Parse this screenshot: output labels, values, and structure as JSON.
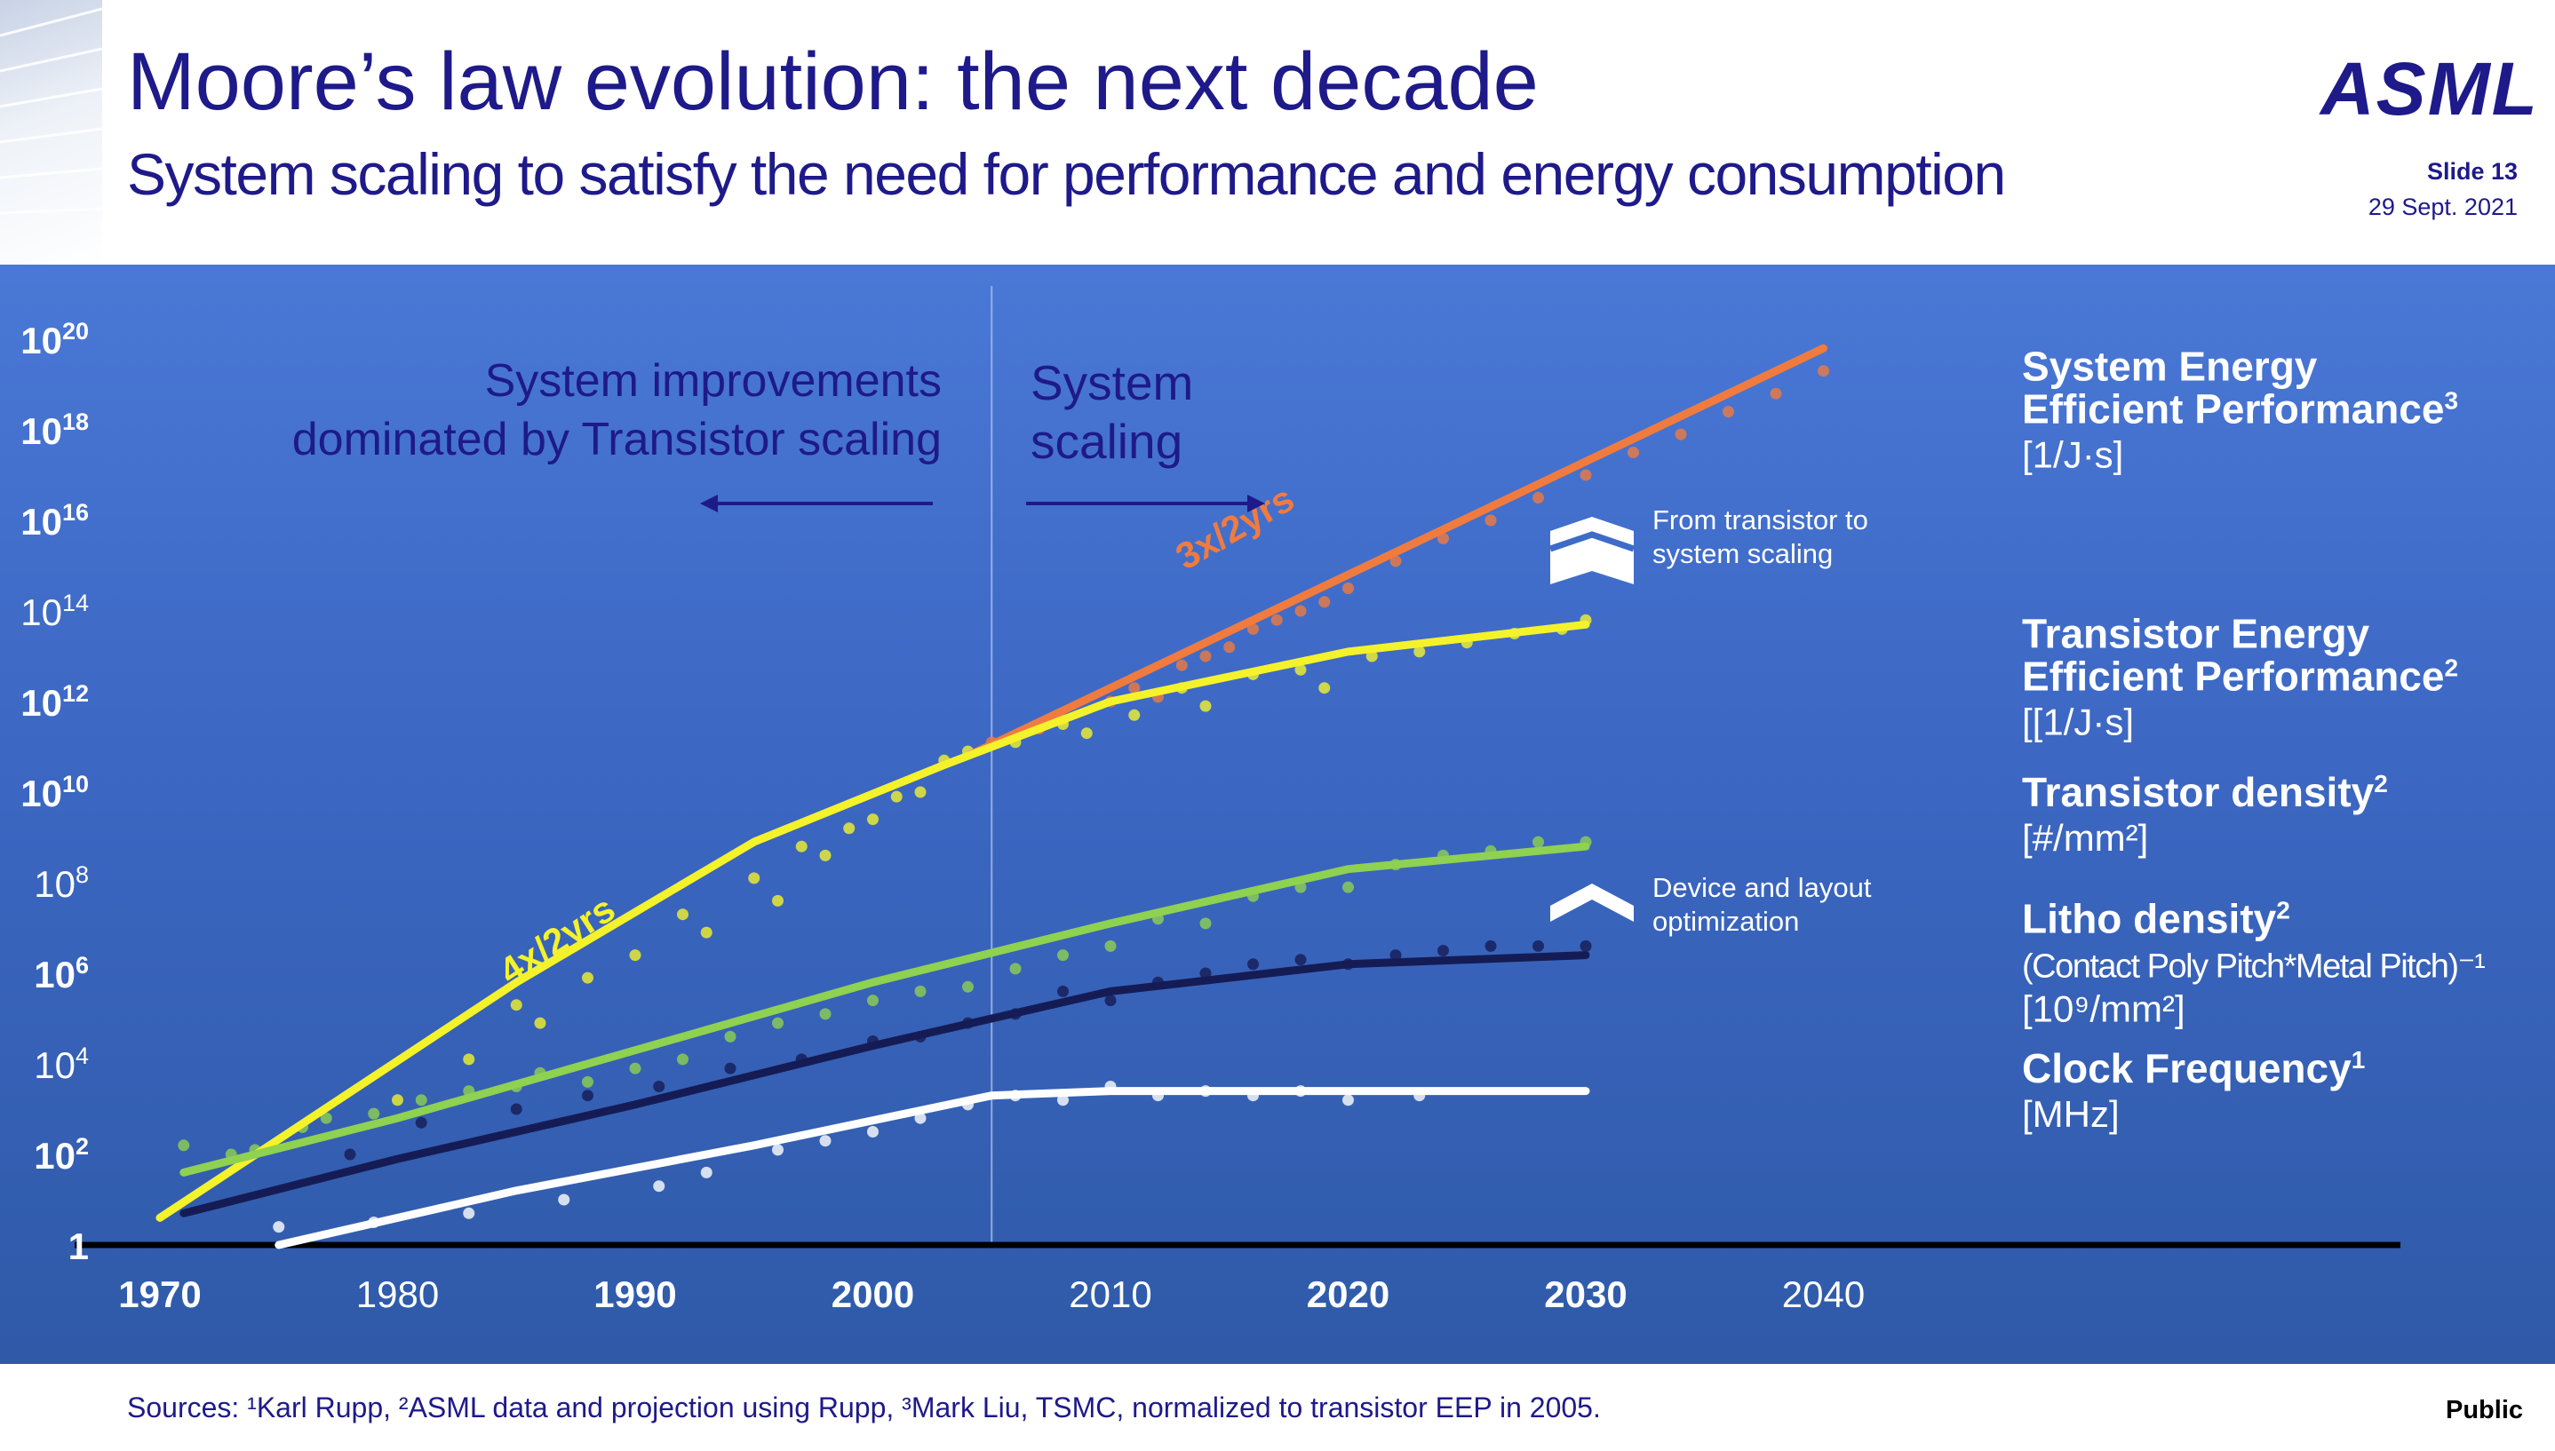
{
  "header": {
    "title": "Moore’s law evolution: the next decade",
    "subtitle": "System scaling to satisfy the need for performance and energy consumption",
    "logo": "ASML",
    "slide": "Slide 13",
    "date": "29 Sept. 2021"
  },
  "footer": {
    "sources": "Sources: ¹Karl Rupp, ²ASML data and projection using Rupp, ³Mark Liu, TSMC, normalized to transistor EEP in 2005.",
    "classification": "Public"
  },
  "colors": {
    "background_top": "#4a78d6",
    "background_bottom": "#2f5aa8",
    "system_eep": "#f07b3f",
    "transistor_eep": "#f4f22a",
    "transistor_density": "#8fd150",
    "litho_density": "#151c55",
    "clock_frequency": "#ffffff",
    "annotation_text": "#1e1a8a"
  },
  "chart_data": {
    "type": "line",
    "y_scale": "log10",
    "x_range": [
      1970,
      2040
    ],
    "y_range": [
      1,
      1e+20
    ],
    "x_ticks": [
      {
        "value": 1970,
        "label": "1970",
        "bold": true
      },
      {
        "value": 1980,
        "label": "1980",
        "bold": false
      },
      {
        "value": 1990,
        "label": "1990",
        "bold": true
      },
      {
        "value": 2000,
        "label": "2000",
        "bold": true
      },
      {
        "value": 2010,
        "label": "2010",
        "bold": false
      },
      {
        "value": 2020,
        "label": "2020",
        "bold": true
      },
      {
        "value": 2030,
        "label": "2030",
        "bold": true
      },
      {
        "value": 2040,
        "label": "2040",
        "bold": false
      }
    ],
    "y_ticks": [
      {
        "exp": 0,
        "base": "1",
        "sup": "",
        "bold": true
      },
      {
        "exp": 2,
        "base": "10",
        "sup": "2",
        "bold": true
      },
      {
        "exp": 4,
        "base": "10",
        "sup": "4",
        "bold": false
      },
      {
        "exp": 6,
        "base": "10",
        "sup": "6",
        "bold": true
      },
      {
        "exp": 8,
        "base": "10",
        "sup": "8",
        "bold": false
      },
      {
        "exp": 10,
        "base": "10",
        "sup": "10",
        "bold": true
      },
      {
        "exp": 12,
        "base": "10",
        "sup": "12",
        "bold": true
      },
      {
        "exp": 14,
        "base": "10",
        "sup": "14",
        "bold": false
      },
      {
        "exp": 16,
        "base": "10",
        "sup": "16",
        "bold": true
      },
      {
        "exp": 18,
        "base": "10",
        "sup": "18",
        "bold": true
      },
      {
        "exp": 20,
        "base": "10",
        "sup": "20",
        "bold": true
      }
    ],
    "divider_year": 2005,
    "series": [
      {
        "key": "system_eep",
        "color": "#f07b3f",
        "width": 9,
        "trend": [
          [
            2004,
            10.8
          ],
          [
            2040,
            19.8
          ]
        ],
        "points": [
          [
            2005,
            11.1
          ],
          [
            2007,
            11.4
          ],
          [
            2008,
            11.6
          ],
          [
            2010,
            12.0
          ],
          [
            2011,
            12.3
          ],
          [
            2012,
            12.1
          ],
          [
            2013,
            12.8
          ],
          [
            2014,
            13.0
          ],
          [
            2015,
            13.2
          ],
          [
            2016,
            13.6
          ],
          [
            2017,
            13.8
          ],
          [
            2018,
            14.0
          ],
          [
            2019,
            14.2
          ],
          [
            2020,
            14.5
          ],
          [
            2022,
            15.1
          ],
          [
            2024,
            15.6
          ],
          [
            2026,
            16.0
          ],
          [
            2028,
            16.5
          ],
          [
            2030,
            17.0
          ],
          [
            2032,
            17.5
          ],
          [
            2034,
            17.9
          ],
          [
            2036,
            18.4
          ],
          [
            2038,
            18.8
          ],
          [
            2040,
            19.3
          ]
        ]
      },
      {
        "key": "transistor_eep",
        "color": "#f4f22a",
        "width": 9,
        "trend": [
          [
            1970,
            0.6
          ],
          [
            1985,
            5.8
          ],
          [
            1995,
            8.9
          ],
          [
            2003,
            10.6
          ],
          [
            2010,
            12.0
          ],
          [
            2020,
            13.1
          ],
          [
            2030,
            13.7
          ]
        ],
        "points": [
          [
            1980,
            3.2
          ],
          [
            1983,
            4.1
          ],
          [
            1985,
            5.3
          ],
          [
            1986,
            4.9
          ],
          [
            1988,
            5.9
          ],
          [
            1990,
            6.4
          ],
          [
            1992,
            7.3
          ],
          [
            1993,
            6.9
          ],
          [
            1995,
            8.1
          ],
          [
            1996,
            7.6
          ],
          [
            1997,
            8.8
          ],
          [
            1998,
            8.6
          ],
          [
            1999,
            9.2
          ],
          [
            2000,
            9.4
          ],
          [
            2001,
            9.9
          ],
          [
            2002,
            10.0
          ],
          [
            2003,
            10.7
          ],
          [
            2004,
            10.9
          ],
          [
            2006,
            11.1
          ],
          [
            2008,
            11.5
          ],
          [
            2009,
            11.3
          ],
          [
            2011,
            11.7
          ],
          [
            2013,
            12.3
          ],
          [
            2014,
            11.9
          ],
          [
            2016,
            12.6
          ],
          [
            2018,
            12.7
          ],
          [
            2019,
            12.3
          ],
          [
            2021,
            13.0
          ],
          [
            2023,
            13.1
          ],
          [
            2025,
            13.3
          ],
          [
            2027,
            13.5
          ],
          [
            2029,
            13.6
          ],
          [
            2030,
            13.8
          ]
        ]
      },
      {
        "key": "transistor_density",
        "color": "#8fd150",
        "width": 9,
        "trend": [
          [
            1971,
            1.6
          ],
          [
            1980,
            2.8
          ],
          [
            1990,
            4.3
          ],
          [
            2000,
            5.8
          ],
          [
            2010,
            7.1
          ],
          [
            2020,
            8.3
          ],
          [
            2030,
            8.8
          ]
        ],
        "points": [
          [
            1971,
            2.2
          ],
          [
            1973,
            2.0
          ],
          [
            1974,
            2.1
          ],
          [
            1976,
            2.6
          ],
          [
            1977,
            2.8
          ],
          [
            1979,
            2.9
          ],
          [
            1981,
            3.2
          ],
          [
            1983,
            3.4
          ],
          [
            1985,
            3.5
          ],
          [
            1986,
            3.8
          ],
          [
            1988,
            3.6
          ],
          [
            1990,
            3.9
          ],
          [
            1992,
            4.1
          ],
          [
            1994,
            4.6
          ],
          [
            1996,
            4.9
          ],
          [
            1998,
            5.1
          ],
          [
            2000,
            5.4
          ],
          [
            2002,
            5.6
          ],
          [
            2004,
            5.7
          ],
          [
            2006,
            6.1
          ],
          [
            2008,
            6.4
          ],
          [
            2010,
            6.6
          ],
          [
            2012,
            7.2
          ],
          [
            2014,
            7.1
          ],
          [
            2016,
            7.7
          ],
          [
            2018,
            7.9
          ],
          [
            2020,
            7.9
          ],
          [
            2022,
            8.4
          ],
          [
            2024,
            8.6
          ],
          [
            2026,
            8.7
          ],
          [
            2028,
            8.9
          ],
          [
            2030,
            8.9
          ]
        ]
      },
      {
        "key": "litho_density",
        "color": "#151c55",
        "width": 9,
        "trend": [
          [
            1971,
            0.7
          ],
          [
            1980,
            1.9
          ],
          [
            1990,
            3.1
          ],
          [
            2000,
            4.4
          ],
          [
            2010,
            5.6
          ],
          [
            2020,
            6.2
          ],
          [
            2030,
            6.4
          ]
        ],
        "points": [
          [
            1978,
            2.0
          ],
          [
            1981,
            2.7
          ],
          [
            1985,
            3.0
          ],
          [
            1988,
            3.3
          ],
          [
            1991,
            3.5
          ],
          [
            1994,
            3.9
          ],
          [
            1997,
            4.1
          ],
          [
            2000,
            4.5
          ],
          [
            2002,
            4.6
          ],
          [
            2004,
            4.9
          ],
          [
            2006,
            5.1
          ],
          [
            2008,
            5.6
          ],
          [
            2010,
            5.4
          ],
          [
            2012,
            5.8
          ],
          [
            2014,
            6.0
          ],
          [
            2016,
            6.2
          ],
          [
            2018,
            6.3
          ],
          [
            2020,
            6.2
          ],
          [
            2022,
            6.4
          ],
          [
            2024,
            6.5
          ],
          [
            2026,
            6.6
          ],
          [
            2028,
            6.6
          ],
          [
            2030,
            6.6
          ]
        ]
      },
      {
        "key": "clock_frequency",
        "color": "#ffffff",
        "width": 9,
        "trend": [
          [
            1975,
            0.0
          ],
          [
            1985,
            1.2
          ],
          [
            1995,
            2.2
          ],
          [
            2005,
            3.3
          ],
          [
            2010,
            3.4
          ],
          [
            2030,
            3.4
          ]
        ],
        "points": [
          [
            1975,
            0.4
          ],
          [
            1979,
            0.5
          ],
          [
            1983,
            0.7
          ],
          [
            1987,
            1.0
          ],
          [
            1991,
            1.3
          ],
          [
            1993,
            1.6
          ],
          [
            1996,
            2.1
          ],
          [
            1998,
            2.3
          ],
          [
            2000,
            2.5
          ],
          [
            2002,
            2.8
          ],
          [
            2004,
            3.1
          ],
          [
            2006,
            3.3
          ],
          [
            2008,
            3.2
          ],
          [
            2010,
            3.5
          ],
          [
            2012,
            3.3
          ],
          [
            2014,
            3.4
          ],
          [
            2016,
            3.3
          ],
          [
            2018,
            3.4
          ],
          [
            2020,
            3.2
          ],
          [
            2023,
            3.3
          ]
        ]
      }
    ],
    "trend_labels": [
      {
        "text": "4x/2yrs",
        "color": "#f4f22a",
        "year": 1987,
        "exp": 6.5,
        "angle": -33
      },
      {
        "text": "3x/2yrs",
        "color": "#f07b3f",
        "year": 2015.5,
        "exp": 15.6,
        "angle": -30
      }
    ],
    "region_labels": {
      "left": [
        "System improvements",
        "dominated by Transistor scaling"
      ],
      "right": [
        "System",
        "scaling"
      ]
    },
    "annotations": [
      {
        "key": "from_transistor",
        "lines": [
          "From transistor to",
          "system scaling"
        ],
        "icon": "double-chevron-up-icon"
      },
      {
        "key": "device_layout",
        "lines": [
          "Device and layout",
          "optimization"
        ],
        "icon": "chevron-up-icon"
      }
    ],
    "legend": [
      {
        "key": "system_eep",
        "exp": 18.5,
        "title": [
          "System Energy",
          "Efficient Performance"
        ],
        "sup": "3",
        "unit": [
          "[1/J·s]"
        ]
      },
      {
        "key": "transistor_eep",
        "exp": 12.6,
        "title": [
          "Transistor Energy",
          "Efficient Performance"
        ],
        "sup": "2",
        "unit": [
          "[[1/J·s]"
        ]
      },
      {
        "key": "transistor_density",
        "exp": 9.1,
        "title": [
          "Transistor density"
        ],
        "sup": "2",
        "unit": [
          "[#/mm²]"
        ]
      },
      {
        "key": "litho_density",
        "exp": 6.3,
        "title": [
          "Litho density"
        ],
        "sup": "2",
        "unit": [
          "(Contact Poly Pitch*Metal Pitch)⁻¹",
          "[10⁹/mm²]"
        ]
      },
      {
        "key": "clock_frequency",
        "exp": 3.0,
        "title": [
          "Clock Frequency"
        ],
        "sup": "1",
        "unit": [
          "[MHz]"
        ]
      }
    ]
  }
}
